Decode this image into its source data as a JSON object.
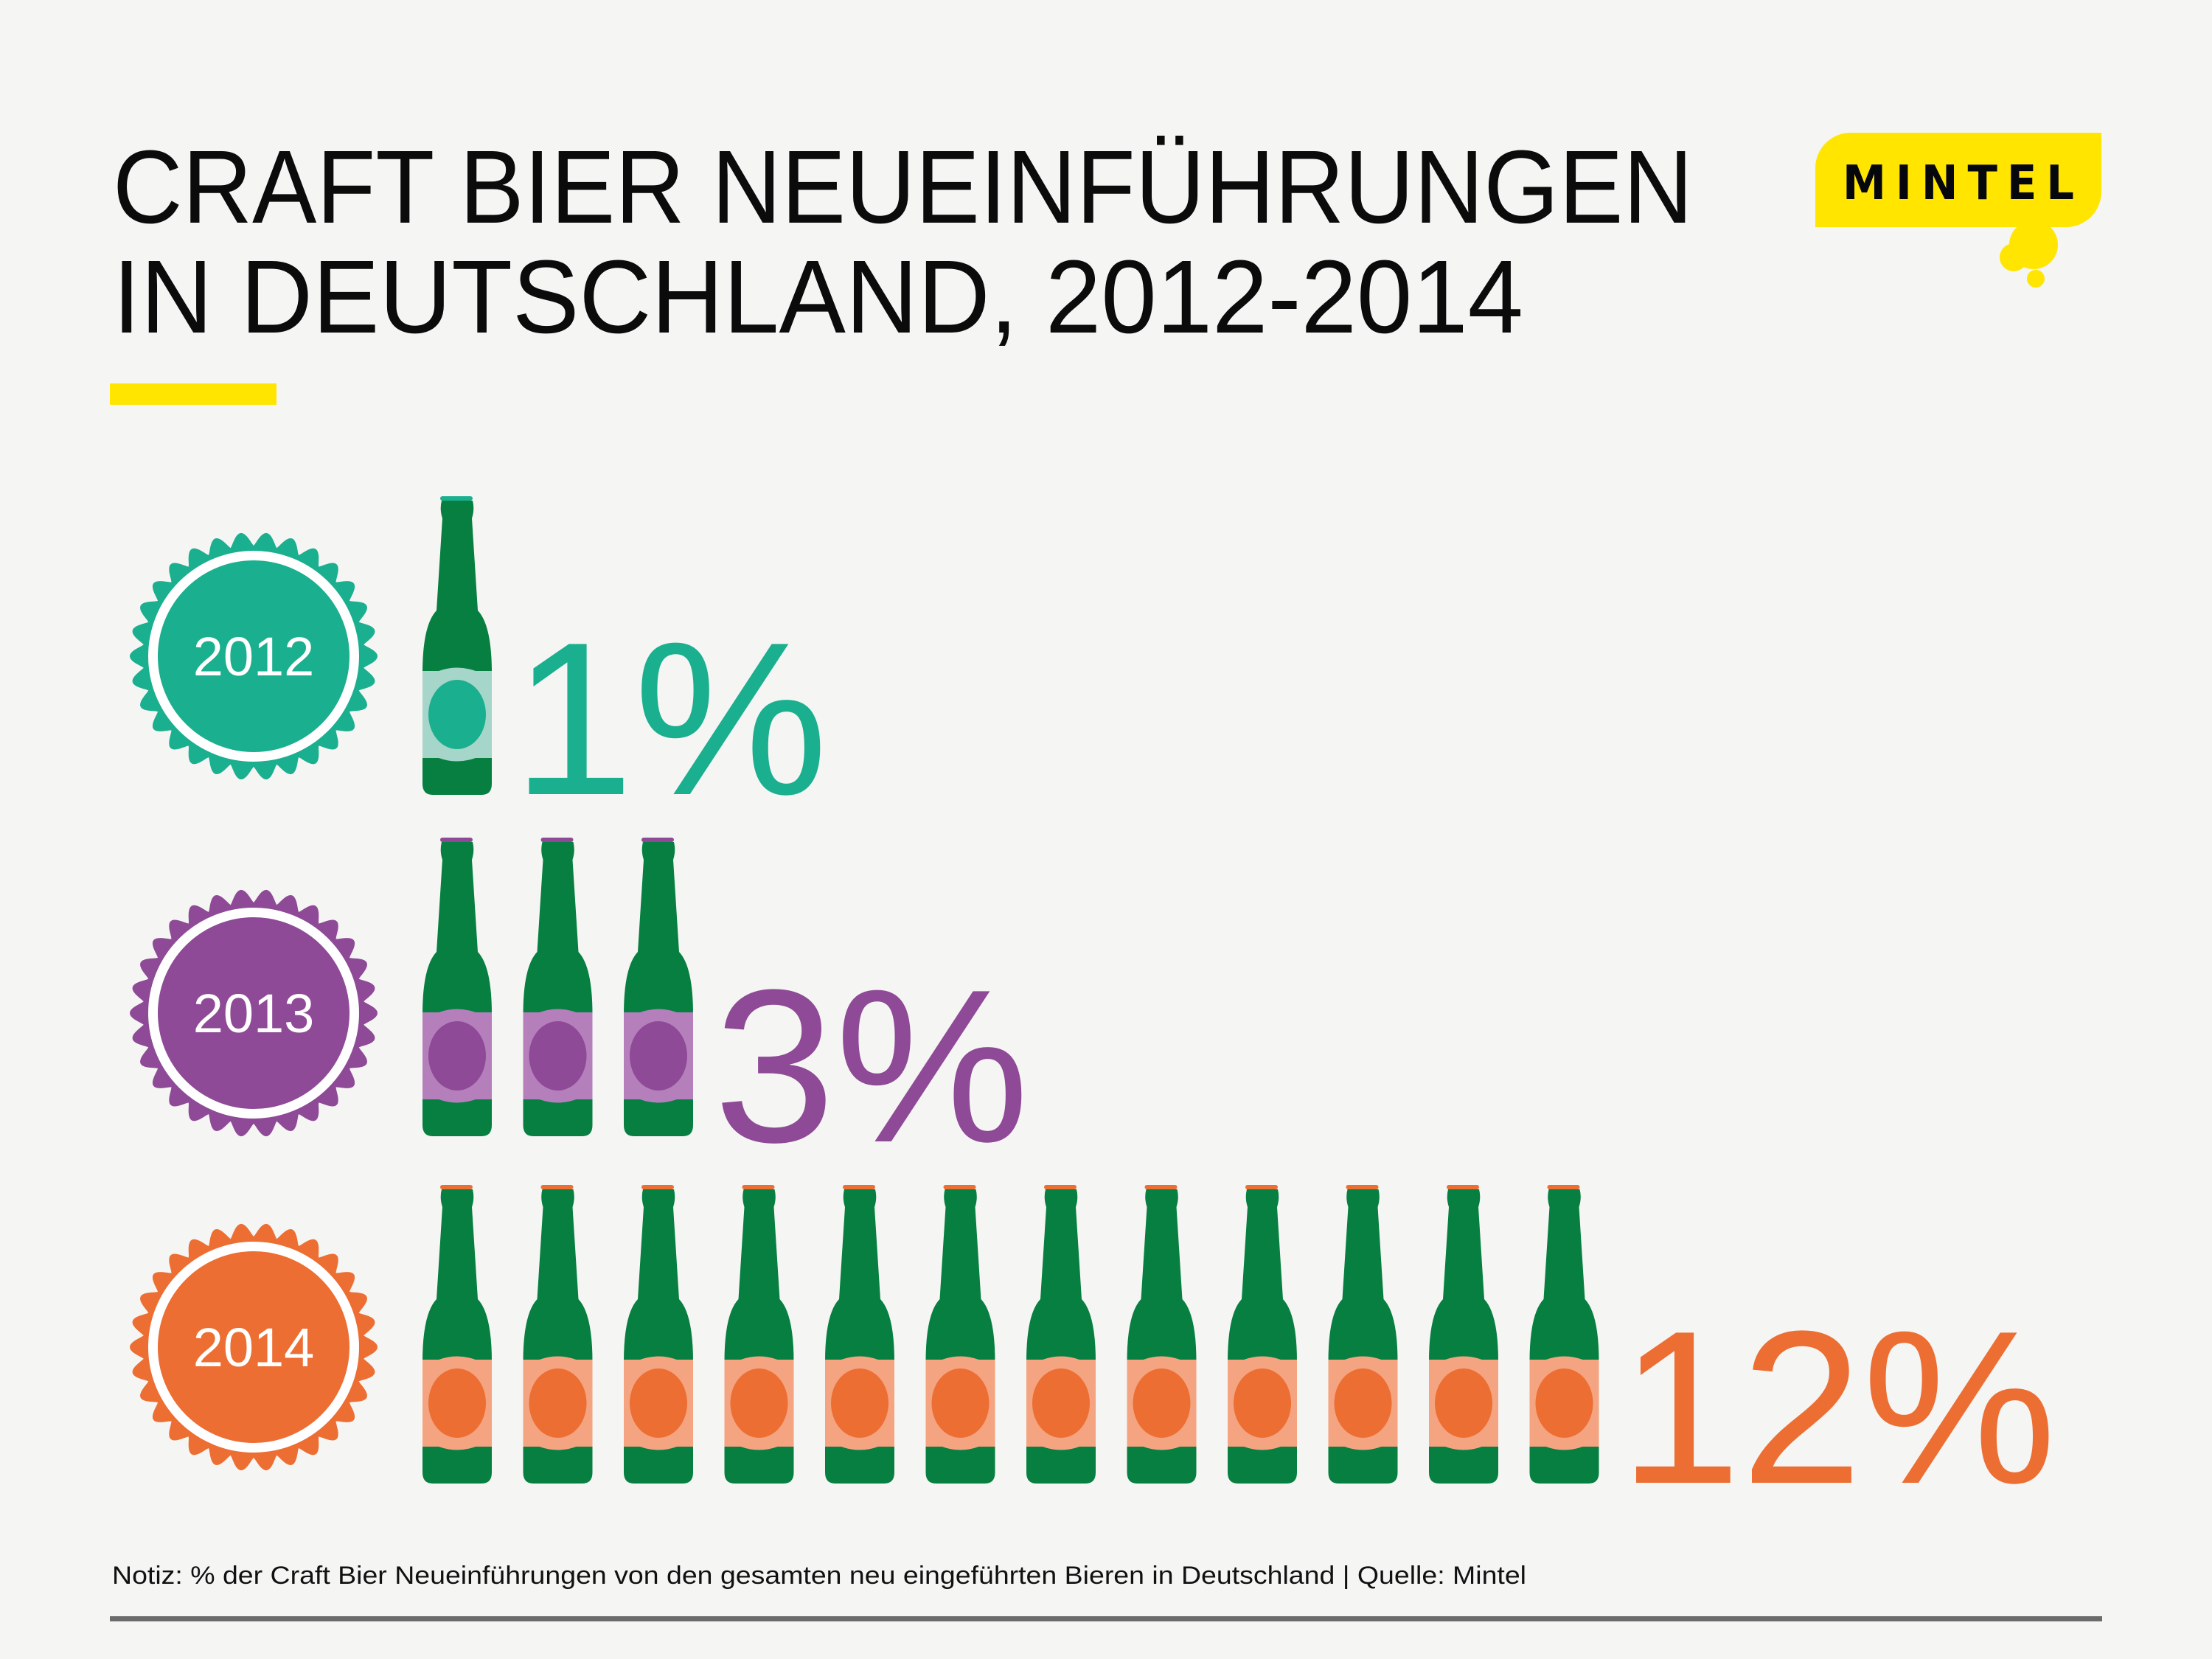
{
  "title": {
    "line1": "CRAFT BIER NEUEINFÜHRUNGEN",
    "line2": "IN DEUTSCHLAND, 2012-2014"
  },
  "logo": {
    "text": "MINTEL",
    "color": "#ffe500"
  },
  "chart_data": {
    "type": "pictogram",
    "unit_icon": "beer-bottle-icon",
    "unit_value_percent": 1,
    "categories": [
      "2012",
      "2013",
      "2014"
    ],
    "values": [
      1,
      3,
      12
    ],
    "value_labels": [
      "1%",
      "3%",
      "12%"
    ],
    "colors": {
      "2012": {
        "main": "#1aaf8e",
        "light": "#a6d6c9"
      },
      "2013": {
        "main": "#8e4a96",
        "light": "#b57fbc"
      },
      "2014": {
        "main": "#ed6e33",
        "light": "#f4a480"
      }
    },
    "bottle_color": "#067f41"
  },
  "footnote": "Notiz: % der Craft Bier Neueinführungen von den gesamten neu eingeführten Bieren in Deutschland | Quelle: Mintel",
  "accent_color": "#ffe500"
}
